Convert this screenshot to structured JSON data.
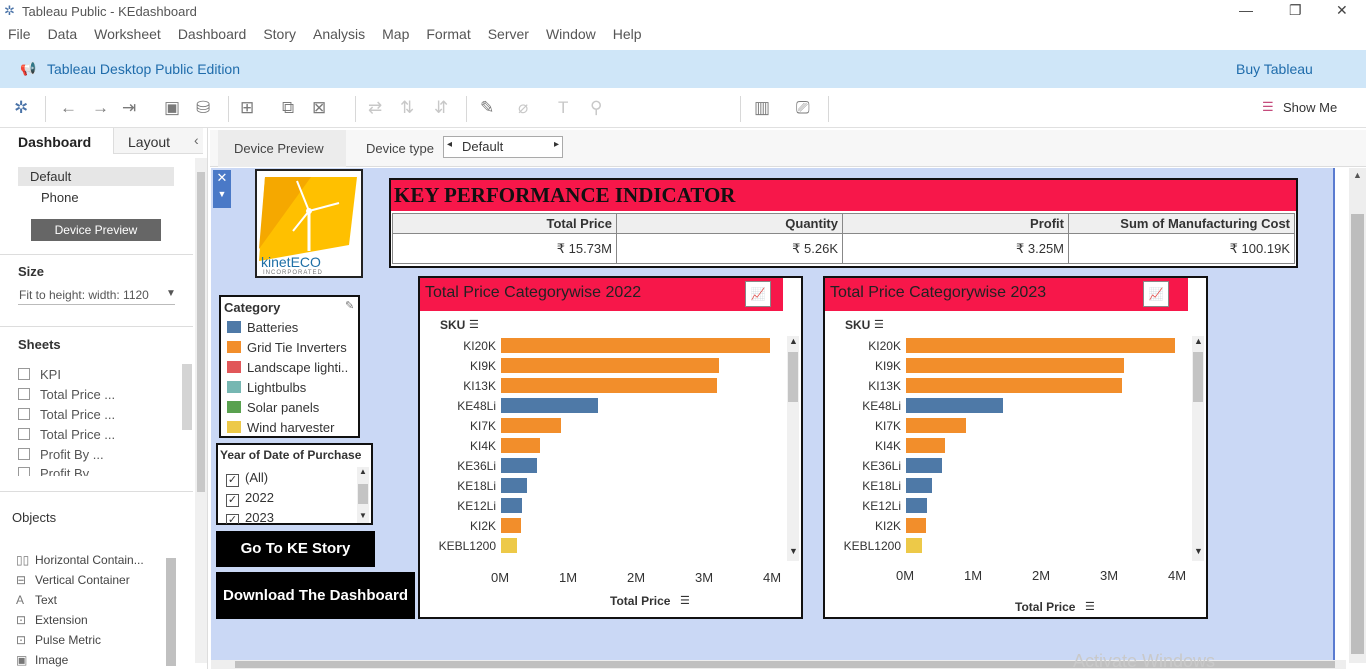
{
  "window": {
    "title": "Tableau Public - KEdashboard"
  },
  "menu": [
    "File",
    "Data",
    "Worksheet",
    "Dashboard",
    "Story",
    "Analysis",
    "Map",
    "Format",
    "Server",
    "Window",
    "Help"
  ],
  "banner": {
    "edition": "Tableau Desktop Public Edition",
    "buy": "Buy Tableau"
  },
  "toolbar": {
    "show_me": "Show Me"
  },
  "left": {
    "tab_dashboard": "Dashboard",
    "tab_layout": "Layout",
    "device_default": "Default",
    "device_phone": "Phone",
    "device_preview_btn": "Device Preview",
    "size_title": "Size",
    "size_value": "Fit to height: width: 1120",
    "sheets_title": "Sheets",
    "sheets": [
      "KPI",
      "Total Price ...",
      "Total Price ...",
      "Total Price ...",
      "Profit By ...",
      "Profit By ..."
    ],
    "objects_title": "Objects",
    "objects": [
      "Horizontal Contain...",
      "Vertical Container",
      "Text",
      "Extension",
      "Pulse Metric",
      "Image"
    ]
  },
  "devicebar": {
    "tab": "Device Preview",
    "type_label": "Device type",
    "type_value": "Default"
  },
  "logo": {
    "text": "kinetECO",
    "sub": "INCORPORATED"
  },
  "kpi": {
    "title": "KEY PERFORMANCE INDICATOR",
    "headers": [
      "Total Price",
      "Quantity",
      "Profit",
      "Sum of Manufacturing Cost"
    ],
    "values": [
      "₹ 15.73M",
      "₹ 5.26K",
      "₹ 3.25M",
      "₹ 100.19K"
    ]
  },
  "legend": {
    "title": "Category",
    "items": [
      {
        "label": "Batteries",
        "color": "#4e79a7"
      },
      {
        "label": "Grid Tie Inverters",
        "color": "#f28e2b"
      },
      {
        "label": "Landscape lighti..",
        "color": "#e15759"
      },
      {
        "label": "Lightbulbs",
        "color": "#76b7b2"
      },
      {
        "label": "Solar panels",
        "color": "#59a14f"
      },
      {
        "label": "Wind harvester",
        "color": "#edc948"
      }
    ]
  },
  "filter": {
    "title": "Year of Date of Purchase",
    "items": [
      "(All)",
      "2022",
      "2023"
    ]
  },
  "buttons": {
    "story": "Go To KE Story",
    "download": "Download The Dashboard"
  },
  "charts": [
    {
      "title": "Total Price Categorywise 2022",
      "sku_label": "SKU",
      "x_label": "Total Price",
      "ticks": [
        "0M",
        "1M",
        "2M",
        "3M",
        "4M"
      ],
      "bars": [
        {
          "sku": "KI20K",
          "value": 3.95,
          "color": "#f28e2b"
        },
        {
          "sku": "KI9K",
          "value": 3.2,
          "color": "#f28e2b"
        },
        {
          "sku": "KI13K",
          "value": 3.18,
          "color": "#f28e2b"
        },
        {
          "sku": "KE48Li",
          "value": 1.43,
          "color": "#4e79a7"
        },
        {
          "sku": "KI7K",
          "value": 0.88,
          "color": "#f28e2b"
        },
        {
          "sku": "KI4K",
          "value": 0.57,
          "color": "#f28e2b"
        },
        {
          "sku": "KE36Li",
          "value": 0.53,
          "color": "#4e79a7"
        },
        {
          "sku": "KE18Li",
          "value": 0.38,
          "color": "#4e79a7"
        },
        {
          "sku": "KE12Li",
          "value": 0.31,
          "color": "#4e79a7"
        },
        {
          "sku": "KI2K",
          "value": 0.29,
          "color": "#f28e2b"
        },
        {
          "sku": "KEBL1200",
          "value": 0.24,
          "color": "#edc948"
        }
      ]
    },
    {
      "title": "Total Price Categorywise 2023",
      "sku_label": "SKU",
      "x_label": "Total Price",
      "ticks": [
        "0M",
        "1M",
        "2M",
        "3M",
        "4M"
      ],
      "bars": [
        {
          "sku": "KI20K",
          "value": 3.95,
          "color": "#f28e2b"
        },
        {
          "sku": "KI9K",
          "value": 3.2,
          "color": "#f28e2b"
        },
        {
          "sku": "KI13K",
          "value": 3.18,
          "color": "#f28e2b"
        },
        {
          "sku": "KE48Li",
          "value": 1.43,
          "color": "#4e79a7"
        },
        {
          "sku": "KI7K",
          "value": 0.88,
          "color": "#f28e2b"
        },
        {
          "sku": "KI4K",
          "value": 0.57,
          "color": "#f28e2b"
        },
        {
          "sku": "KE36Li",
          "value": 0.53,
          "color": "#4e79a7"
        },
        {
          "sku": "KE18Li",
          "value": 0.38,
          "color": "#4e79a7"
        },
        {
          "sku": "KE12Li",
          "value": 0.31,
          "color": "#4e79a7"
        },
        {
          "sku": "KI2K",
          "value": 0.29,
          "color": "#f28e2b"
        },
        {
          "sku": "KEBL1200",
          "value": 0.24,
          "color": "#edc948"
        }
      ]
    }
  ],
  "watermark": "Activate Windows"
}
